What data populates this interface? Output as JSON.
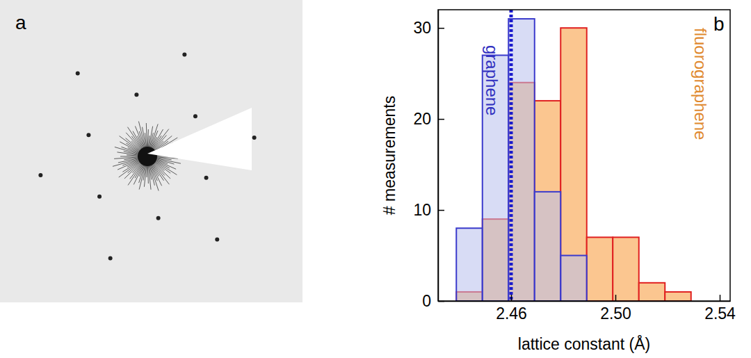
{
  "chart_data": {
    "type": "histogram",
    "panel_label": "b",
    "x_label": "lattice constant (Å)",
    "y_label": "# measurements",
    "bins": [
      2.439,
      2.449,
      2.459,
      2.469,
      2.479,
      2.489,
      2.499,
      2.509,
      2.519,
      2.529
    ],
    "series": [
      {
        "name": "fluorographene",
        "color": "#fbc690",
        "values": [
          1,
          9,
          24,
          22,
          30,
          7,
          7,
          2,
          1
        ]
      },
      {
        "name": "graphene",
        "color": "#b8c0ec",
        "values": [
          8,
          27,
          31,
          12,
          5,
          0,
          0,
          0,
          0
        ]
      }
    ],
    "xlim": [
      2.432,
      2.544
    ],
    "ylim": [
      0,
      32
    ],
    "xticks": [
      2.46,
      {
        "value": 2.5,
        "label": "2.50"
      },
      2.54
    ],
    "yticks": [
      0,
      10,
      20,
      30
    ],
    "vline": 2.46
  },
  "image_panel": {
    "panel_label": "a"
  }
}
